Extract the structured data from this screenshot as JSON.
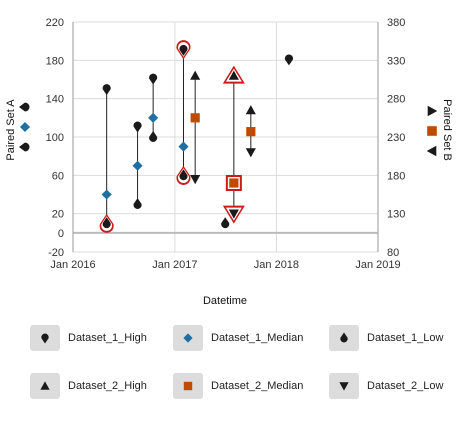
{
  "chart_data": {
    "type": "scatter",
    "xlabel": "Datetime",
    "ylabel_left": "Paired Set A",
    "ylabel_right": "Paired Set B",
    "x_ticks": [
      "Jan 2016",
      "Jan 2017",
      "Jan 2018",
      "Jan 2019"
    ],
    "xlim": [
      "2016-01-01",
      "2019-01-01"
    ],
    "ylim_left": [
      -20,
      220
    ],
    "y_ticks_left": [
      -20,
      0,
      20,
      60,
      100,
      140,
      180,
      220
    ],
    "ylim_right": [
      80,
      380
    ],
    "y_ticks_right": [
      80,
      130,
      180,
      230,
      280,
      330,
      380
    ],
    "grid": true,
    "series": [
      {
        "name": "Dataset_1_High",
        "axis": "left",
        "marker": "teardrop-down",
        "color": "#1a1a1a",
        "points": [
          [
            "2016-05-01",
            150
          ],
          [
            "2016-08-20",
            111
          ],
          [
            "2016-10-15",
            161
          ],
          [
            "2017-02-01",
            191
          ],
          [
            "2018-02-15",
            181
          ]
        ]
      },
      {
        "name": "Dataset_1_Median",
        "axis": "left",
        "marker": "diamond",
        "color": "#1f6fa3",
        "points": [
          [
            "2016-05-01",
            40
          ],
          [
            "2016-08-20",
            70
          ],
          [
            "2016-10-15",
            120
          ],
          [
            "2017-02-01",
            90
          ]
        ]
      },
      {
        "name": "Dataset_1_Low",
        "axis": "left",
        "marker": "teardrop-up",
        "color": "#1a1a1a",
        "points": [
          [
            "2016-05-01",
            10
          ],
          [
            "2016-08-20",
            30
          ],
          [
            "2016-10-15",
            100
          ],
          [
            "2017-02-01",
            60
          ],
          [
            "2017-07-01",
            10
          ]
        ]
      },
      {
        "name": "Dataset_2_High",
        "axis": "right",
        "marker": "triangle-up",
        "color": "#1a1a1a",
        "points": [
          [
            "2017-03-15",
            310
          ],
          [
            "2017-08-01",
            310
          ],
          [
            "2017-10-01",
            265
          ]
        ]
      },
      {
        "name": "Dataset_2_Median",
        "axis": "right",
        "marker": "square",
        "color": "#c04a00",
        "points": [
          [
            "2017-03-15",
            255
          ],
          [
            "2017-08-01",
            170
          ],
          [
            "2017-10-01",
            237
          ]
        ]
      },
      {
        "name": "Dataset_2_Low",
        "axis": "right",
        "marker": "triangle-down",
        "color": "#1a1a1a",
        "points": [
          [
            "2017-03-15",
            175
          ],
          [
            "2017-08-01",
            130
          ],
          [
            "2017-10-01",
            210
          ]
        ]
      }
    ],
    "ranges": [
      {
        "axis": "left",
        "x": "2016-05-01",
        "low": 10,
        "high": 150
      },
      {
        "axis": "left",
        "x": "2016-08-20",
        "low": 30,
        "high": 111
      },
      {
        "axis": "left",
        "x": "2016-10-15",
        "low": 100,
        "high": 161
      },
      {
        "axis": "left",
        "x": "2017-02-01",
        "low": 60,
        "high": 191
      },
      {
        "axis": "right",
        "x": "2017-03-15",
        "low": 175,
        "high": 310
      },
      {
        "axis": "right",
        "x": "2017-08-01",
        "low": 130,
        "high": 310
      },
      {
        "axis": "right",
        "x": "2017-10-01",
        "low": 210,
        "high": 265
      }
    ],
    "highlighted": [
      {
        "series": "Dataset_1_Low",
        "x": "2016-05-01"
      },
      {
        "series": "Dataset_1_High",
        "x": "2017-02-01"
      },
      {
        "series": "Dataset_1_Low",
        "x": "2017-02-01"
      },
      {
        "series": "Dataset_2_High",
        "x": "2017-08-01"
      },
      {
        "series": "Dataset_2_Median",
        "x": "2017-08-01"
      },
      {
        "series": "Dataset_2_Low",
        "x": "2017-08-01"
      }
    ],
    "highlight_color": "#cc1a1a",
    "legend_position": "bottom",
    "left_axis_markers": [
      "Dataset_1_High",
      "Dataset_1_Median",
      "Dataset_1_Low"
    ],
    "right_axis_markers": [
      "Dataset_2_High",
      "Dataset_2_Median",
      "Dataset_2_Low"
    ]
  },
  "legend": {
    "items": [
      {
        "label": "Dataset_1_High",
        "marker": "teardrop-down",
        "color": "#1a1a1a"
      },
      {
        "label": "Dataset_1_Median",
        "marker": "diamond",
        "color": "#1f6fa3"
      },
      {
        "label": "Dataset_1_Low",
        "marker": "teardrop-up",
        "color": "#1a1a1a"
      },
      {
        "label": "Dataset_2_High",
        "marker": "triangle-up",
        "color": "#1a1a1a"
      },
      {
        "label": "Dataset_2_Median",
        "marker": "square",
        "color": "#c04a00"
      },
      {
        "label": "Dataset_2_Low",
        "marker": "triangle-down",
        "color": "#1a1a1a"
      }
    ]
  }
}
